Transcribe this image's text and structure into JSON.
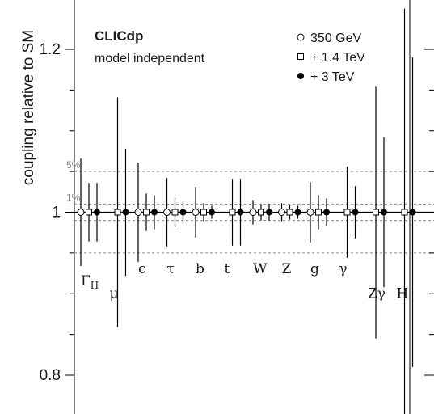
{
  "chart_data": {
    "type": "scatter",
    "title": "CLICdp",
    "subtitle": "model independent",
    "ylabel": "coupling relative to SM",
    "xlabel": "",
    "ylim": [
      0.775,
      1.25
    ],
    "y_ticks": [
      {
        "value": 0.8,
        "label": "0.8"
      },
      {
        "value": 1.0,
        "label": "1"
      },
      {
        "value": 1.2,
        "label": "1.2"
      }
    ],
    "y_minor_ticks": [
      0.85,
      0.9,
      0.95,
      1.05,
      1.1,
      1.15
    ],
    "reference_lines": [
      {
        "value": 1.05,
        "label": "5%",
        "style": "dotted"
      },
      {
        "value": 1.01,
        "label": "1%",
        "style": "dotted"
      },
      {
        "value": 0.99,
        "label": "",
        "style": "dotted"
      },
      {
        "value": 0.95,
        "label": "",
        "style": "dotted"
      }
    ],
    "baseline": 1.0,
    "grid": false,
    "legend_position": "top-right",
    "categories": [
      {
        "label": "Γ",
        "sub": "H",
        "label_y": 0.91
      },
      {
        "label": "μ",
        "sub": "",
        "label_y": 0.895
      },
      {
        "label": "c",
        "sub": "",
        "label_y": 0.925
      },
      {
        "label": "τ",
        "sub": "",
        "label_y": 0.925
      },
      {
        "label": "b",
        "sub": "",
        "label_y": 0.925
      },
      {
        "label": "t",
        "sub": "",
        "label_y": 0.925
      },
      {
        "label": "W",
        "sub": "",
        "label_y": 0.925
      },
      {
        "label": "Z",
        "sub": "",
        "label_y": 0.925
      },
      {
        "label": "g",
        "sub": "",
        "label_y": 0.925
      },
      {
        "label": "γ",
        "sub": "",
        "label_y": 0.925
      },
      {
        "label": "Zγ",
        "sub": "",
        "label_y": 0.895
      },
      {
        "label": "H",
        "sub": "",
        "label_y": 0.895
      }
    ],
    "series": [
      {
        "name": "350 GeV",
        "marker": "open-circle",
        "values": [
          1,
          null,
          1,
          1,
          1,
          null,
          1,
          1,
          1,
          null,
          null,
          null
        ],
        "errors": [
          0.066,
          null,
          0.061,
          0.042,
          0.031,
          null,
          0.015,
          0.011,
          0.037,
          null,
          null,
          null
        ]
      },
      {
        "name": "+ 1.4 TeV",
        "marker": "open-square",
        "values": [
          1,
          1,
          1,
          1,
          1,
          1,
          1,
          1,
          1,
          1,
          1,
          1
        ],
        "errors": [
          0.036,
          0.141,
          0.023,
          0.018,
          0.011,
          0.041,
          0.01,
          0.009,
          0.021,
          0.056,
          0.155,
          0.25
        ]
      },
      {
        "name": "+ 3 TeV",
        "marker": "filled-circle",
        "values": [
          1,
          1,
          1,
          1,
          1,
          1,
          1,
          1,
          1,
          1,
          1,
          1
        ],
        "errors": [
          0.036,
          0.078,
          0.021,
          0.014,
          0.008,
          0.041,
          0.01,
          0.008,
          0.017,
          0.032,
          0.092,
          0.19
        ]
      }
    ]
  },
  "legend": {
    "items": [
      {
        "label": "350 GeV"
      },
      {
        "label": "+ 1.4 TeV"
      },
      {
        "label": "+ 3 TeV"
      }
    ]
  }
}
